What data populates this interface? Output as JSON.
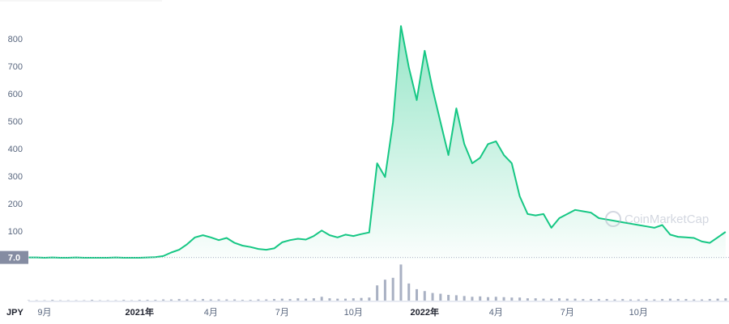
{
  "chart_data": {
    "type": "line",
    "y_axis_label": "JPY",
    "watermark": "CoinMarketCap",
    "categories": [
      null,
      null,
      "9月",
      null,
      null,
      null,
      null,
      null,
      null,
      null,
      null,
      null,
      null,
      null,
      "2021年",
      null,
      null,
      null,
      null,
      null,
      null,
      null,
      null,
      "4月",
      null,
      null,
      null,
      null,
      null,
      null,
      null,
      null,
      "7月",
      null,
      null,
      null,
      null,
      null,
      null,
      null,
      null,
      "10月",
      null,
      null,
      null,
      null,
      null,
      null,
      null,
      null,
      "2022年",
      null,
      null,
      null,
      null,
      null,
      null,
      null,
      null,
      "4月",
      null,
      null,
      null,
      null,
      null,
      null,
      null,
      null,
      "7月",
      null,
      null,
      null,
      null,
      null,
      null,
      null,
      null,
      "10月",
      null,
      null,
      null,
      null,
      null,
      null,
      null,
      null,
      null,
      null,
      null
    ],
    "series": [
      {
        "name": "Price",
        "color": "#16c784",
        "values": [
          7,
          7,
          6,
          7,
          6,
          6,
          7,
          6,
          6,
          6,
          6,
          7,
          6,
          6,
          6,
          7,
          8,
          12,
          25,
          35,
          55,
          80,
          88,
          80,
          70,
          78,
          60,
          50,
          45,
          38,
          35,
          40,
          62,
          70,
          75,
          72,
          85,
          105,
          88,
          80,
          90,
          85,
          92,
          98,
          350,
          300,
          500,
          850,
          700,
          580,
          760,
          620,
          500,
          380,
          550,
          420,
          350,
          370,
          420,
          430,
          380,
          350,
          230,
          165,
          160,
          165,
          115,
          150,
          165,
          180,
          175,
          170,
          150,
          145,
          140,
          135,
          130,
          125,
          120,
          115,
          125,
          90,
          82,
          80,
          78,
          65,
          60,
          80,
          100
        ]
      },
      {
        "name": "Volume",
        "color": "#a9b1c3",
        "axis": "y2",
        "values": [
          1,
          1,
          1,
          2,
          1,
          1,
          1,
          1,
          2,
          1,
          1,
          1,
          2,
          1,
          2,
          2,
          2,
          3,
          3,
          4,
          3,
          3,
          4,
          3,
          3,
          3,
          3,
          2,
          2,
          3,
          3,
          4,
          5,
          4,
          6,
          5,
          6,
          10,
          6,
          5,
          5,
          6,
          7,
          8,
          40,
          55,
          60,
          95,
          45,
          30,
          25,
          20,
          18,
          15,
          14,
          12,
          10,
          11,
          9,
          10,
          9,
          8,
          8,
          6,
          6,
          5,
          5,
          6,
          5,
          5,
          4,
          4,
          4,
          4,
          3,
          4,
          3,
          3,
          4,
          3,
          4,
          5,
          4,
          4,
          3,
          3,
          4,
          5,
          6
        ]
      }
    ],
    "ylim": [
      0,
      880
    ],
    "yticks": [
      100,
      200,
      300,
      400,
      500,
      600,
      700,
      800
    ],
    "y2lim": [
      0,
      100
    ],
    "price_marker": {
      "value": 7,
      "label": "7.0"
    }
  }
}
